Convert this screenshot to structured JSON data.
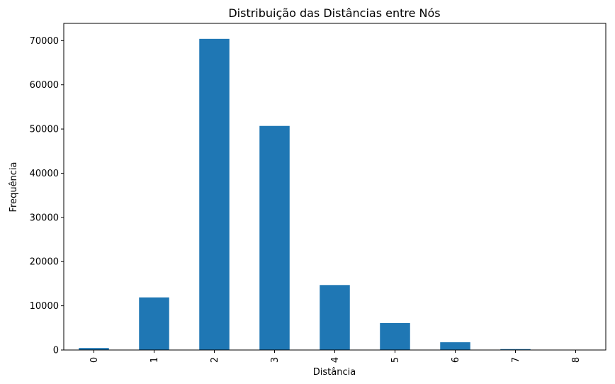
{
  "chart_data": {
    "type": "bar",
    "title": "Distribuição das Distâncias entre Nós",
    "xlabel": "Distância",
    "ylabel": "Frequência",
    "categories": [
      "0",
      "1",
      "2",
      "3",
      "4",
      "5",
      "6",
      "7",
      "8"
    ],
    "values": [
      450,
      11900,
      70400,
      50700,
      14700,
      6100,
      1750,
      200,
      20
    ],
    "ylim": [
      0,
      73900
    ],
    "yticks": [
      0,
      10000,
      20000,
      30000,
      40000,
      50000,
      60000,
      70000
    ],
    "bar_color": "#1f77b4",
    "grid": false,
    "legend": false
  }
}
